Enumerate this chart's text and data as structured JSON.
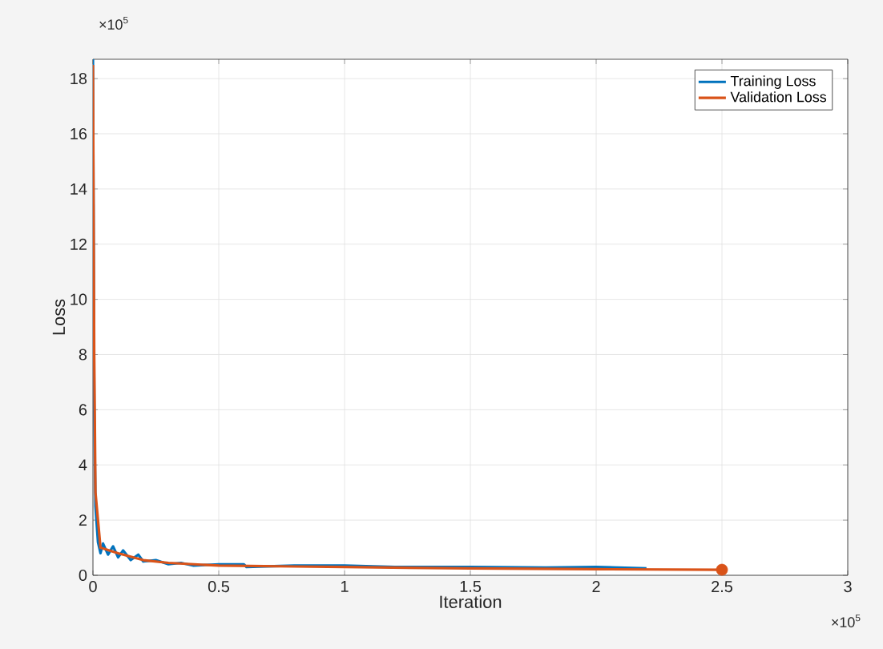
{
  "chart_data": {
    "type": "line",
    "xlabel": "Iteration",
    "ylabel": "Loss",
    "xlim": [
      0,
      3
    ],
    "ylim": [
      0,
      18.7
    ],
    "xticks": [
      0,
      0.5,
      1,
      1.5,
      2,
      2.5,
      3
    ],
    "yticks": [
      0,
      2,
      4,
      6,
      8,
      10,
      12,
      14,
      16,
      18
    ],
    "grid": true,
    "legend": "top right",
    "line_style": "solid",
    "annotations": [
      "×10$^{5}$",
      "×10$^{5}$"
    ],
    "series": [
      {
        "name": "Training Loss",
        "color": "#0072bd",
        "x": [
          0,
          0.005,
          0.01,
          0.02,
          0.03,
          0.04,
          0.06,
          0.08,
          0.1,
          0.12,
          0.15,
          0.18,
          0.2,
          0.25,
          0.3,
          0.35,
          0.4,
          0.5,
          0.6,
          0.61,
          0.8,
          1,
          1.2,
          1.5,
          1.8,
          2,
          2.2
        ],
        "values": [
          18.7,
          6,
          2.5,
          1.2,
          0.8,
          1.15,
          0.75,
          1.05,
          0.65,
          0.9,
          0.55,
          0.75,
          0.5,
          0.55,
          0.4,
          0.45,
          0.35,
          0.4,
          0.4,
          0.3,
          0.35,
          0.35,
          0.3,
          0.3,
          0.28,
          0.3,
          0.25
        ]
      },
      {
        "name": "Validation Loss",
        "color": "#d95319",
        "x": [
          0,
          0.005,
          0.01,
          0.03,
          0.1,
          0.2,
          0.3,
          0.5,
          0.8,
          1,
          1.5,
          2,
          2.5
        ],
        "values": [
          18.5,
          8,
          3,
          1.0,
          0.8,
          0.55,
          0.45,
          0.35,
          0.32,
          0.3,
          0.25,
          0.22,
          0.2
        ]
      },
      {
        "type": "scatter",
        "marker": "circle",
        "color": "#d95319",
        "x": [
          2.5
        ],
        "values": [
          0.2
        ]
      }
    ]
  }
}
